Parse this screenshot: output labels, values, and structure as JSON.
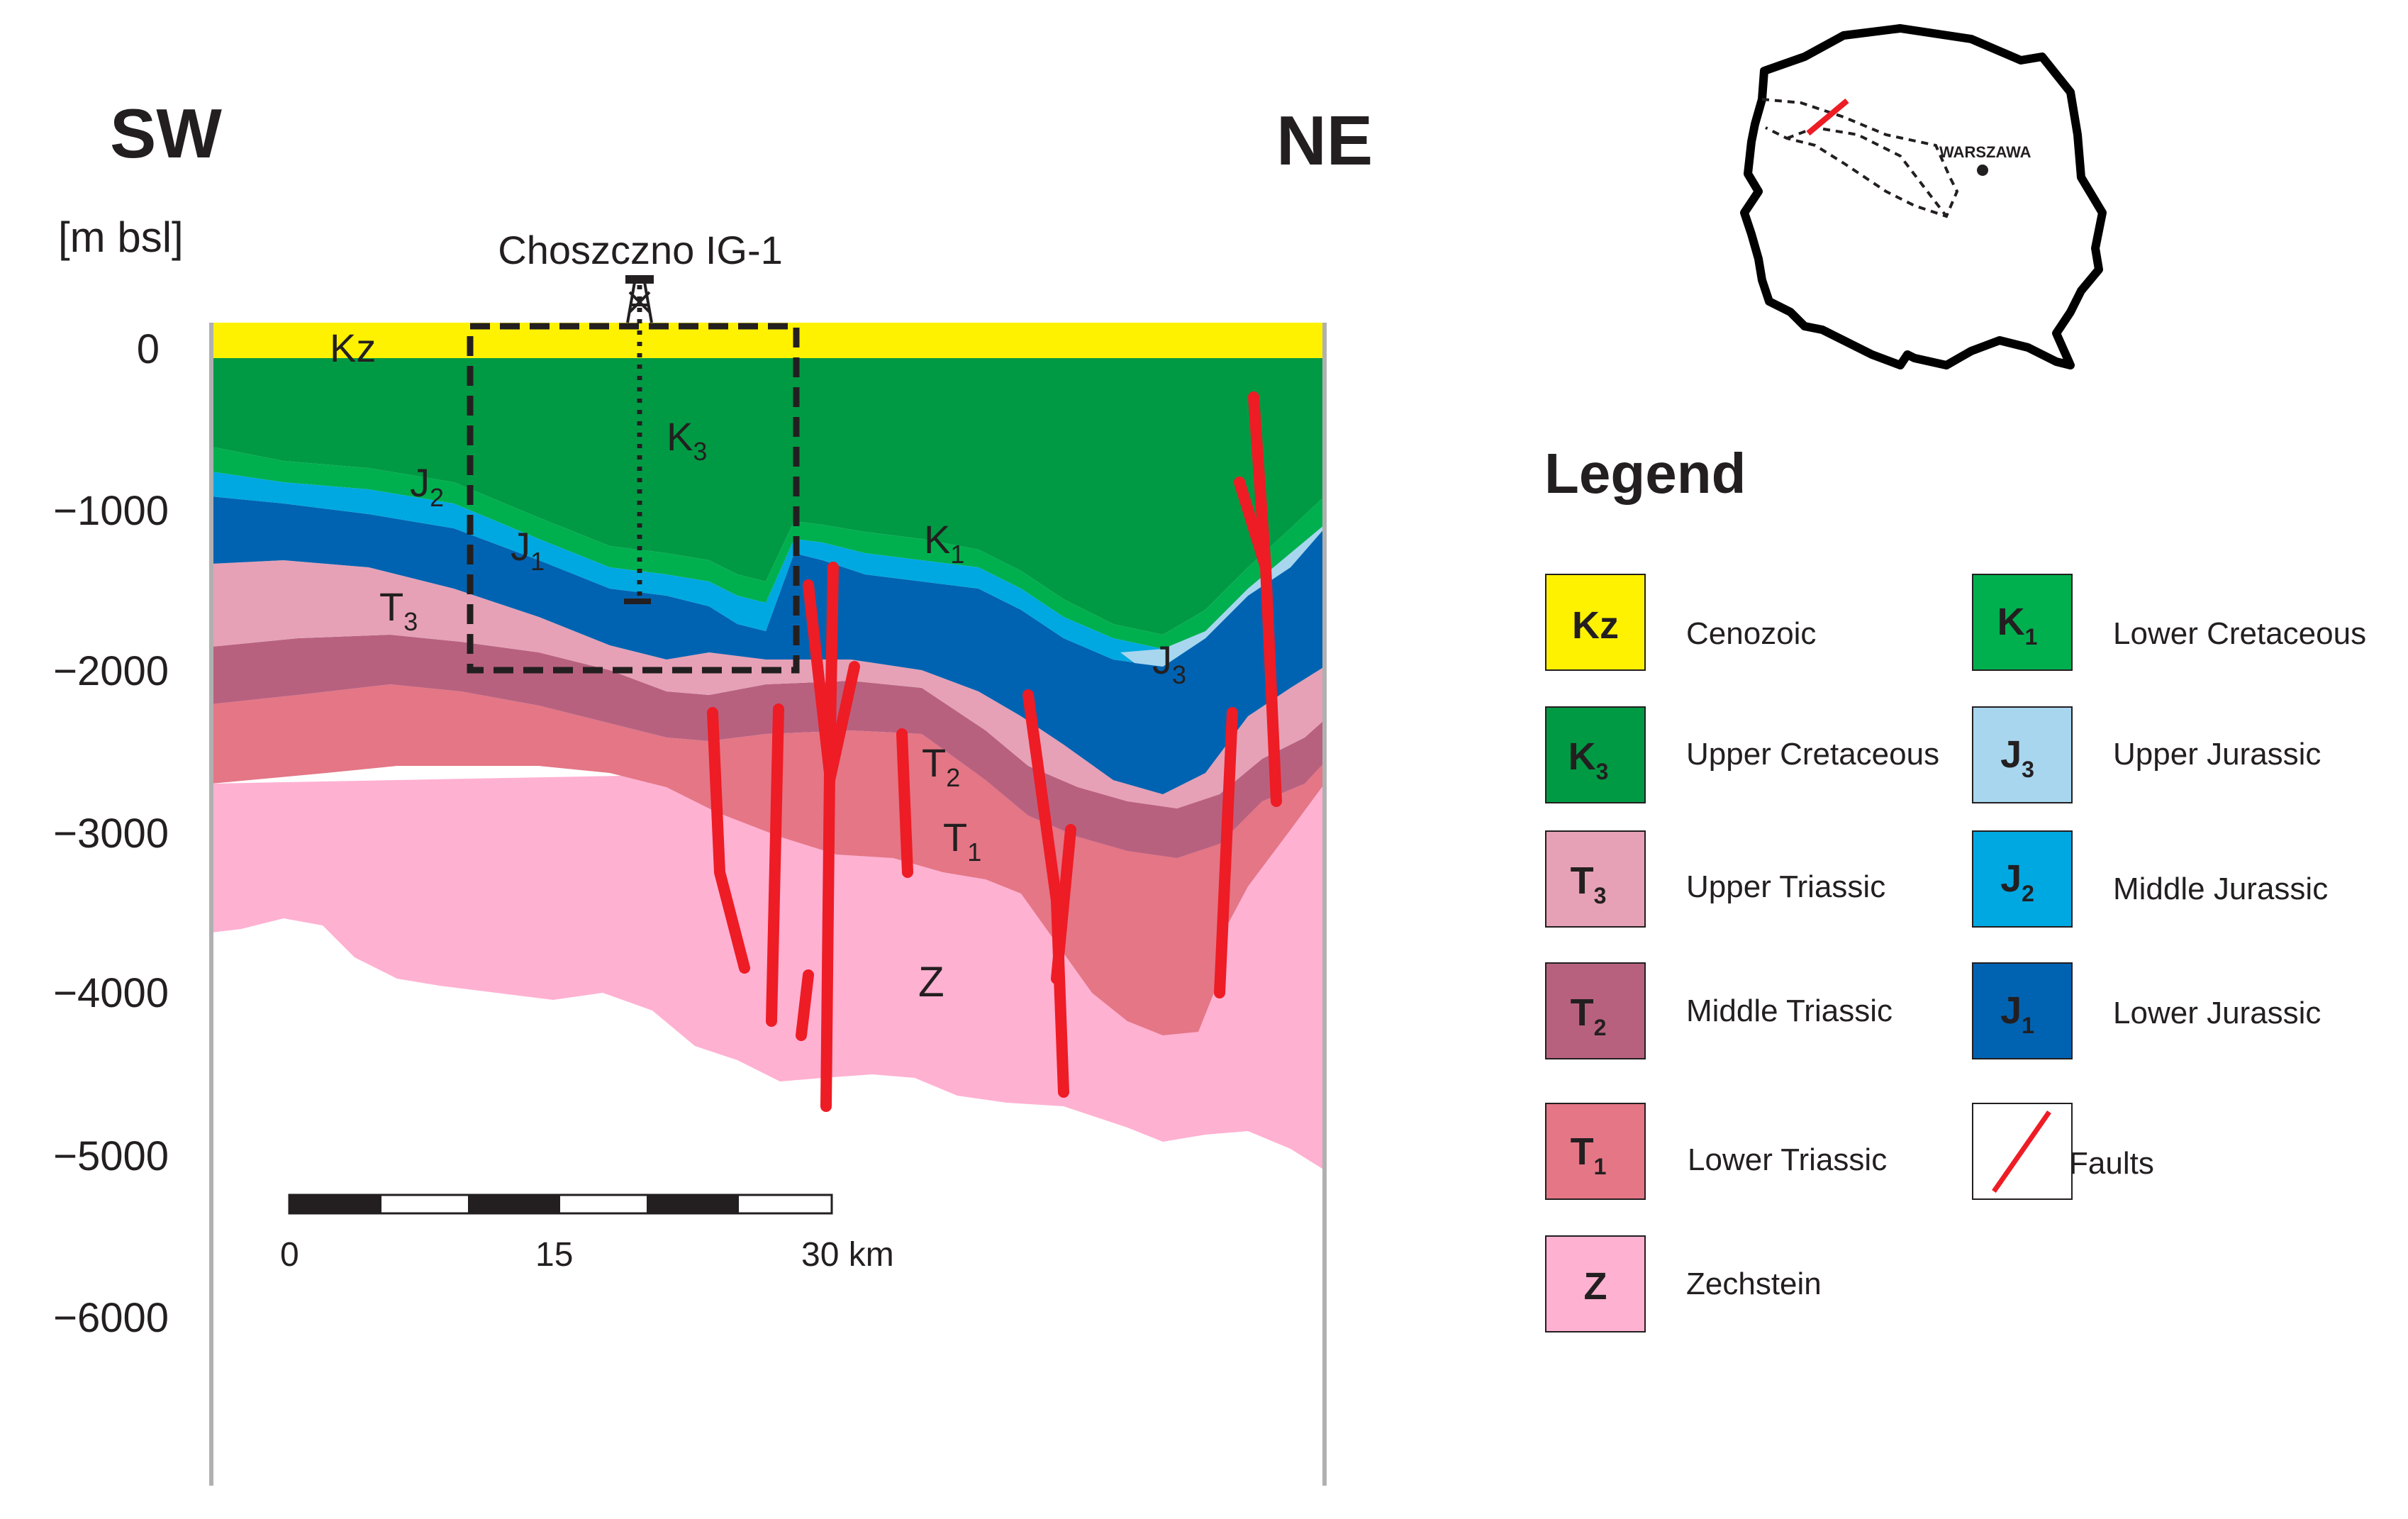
{
  "header": {
    "left_direction": "SW",
    "right_direction": "NE"
  },
  "depth_axis": {
    "unit_label": "[m bsl]",
    "ticks": [
      {
        "value": 0,
        "label": "0"
      },
      {
        "value": -1000,
        "label": "−1000"
      },
      {
        "value": -2000,
        "label": "−2000"
      },
      {
        "value": -3000,
        "label": "−3000"
      },
      {
        "value": -4000,
        "label": "−4000"
      },
      {
        "value": -5000,
        "label": "−5000"
      },
      {
        "value": -6000,
        "label": "−6000"
      }
    ]
  },
  "well": {
    "name": "Choszczno IG-1"
  },
  "section_labels": {
    "kz": "Kz",
    "k3": {
      "base": "K",
      "sub": "3"
    },
    "k1": {
      "base": "K",
      "sub": "1"
    },
    "j3": {
      "base": "J",
      "sub": "3"
    },
    "j2": {
      "base": "J",
      "sub": "2"
    },
    "j1": {
      "base": "J",
      "sub": "1"
    },
    "t3": {
      "base": "T",
      "sub": "3"
    },
    "t2": {
      "base": "T",
      "sub": "2"
    },
    "t1": {
      "base": "T",
      "sub": "1"
    },
    "z": "Z"
  },
  "scale_bar": {
    "labels": [
      "0",
      "15",
      "30 km"
    ]
  },
  "locator_map": {
    "city": "WARSZAWA"
  },
  "legend": {
    "title": "Legend",
    "items": [
      {
        "key": "kz",
        "symbol": "Kz",
        "sub": "",
        "name": "Cenozoic",
        "color": "#fff200"
      },
      {
        "key": "k3",
        "symbol": "K",
        "sub": "3",
        "name": "Upper Cretaceous",
        "color": "#009a44"
      },
      {
        "key": "t3",
        "symbol": "T",
        "sub": "3",
        "name": "Upper Triassic",
        "color": "#e6a1b6"
      },
      {
        "key": "t2",
        "symbol": "T",
        "sub": "2",
        "name": "Middle Triassic",
        "color": "#b8617f"
      },
      {
        "key": "t1",
        "symbol": "T",
        "sub": "1",
        "name": "Lower Triassic",
        "color": "#e47686"
      },
      {
        "key": "z",
        "symbol": "Z",
        "sub": "",
        "name": "Zechstein",
        "color": "#ffb1d2"
      },
      {
        "key": "k1",
        "symbol": "K",
        "sub": "1",
        "name": "Lower Cretaceous",
        "color": "#00b04f"
      },
      {
        "key": "j3",
        "symbol": "J",
        "sub": "3",
        "name": "Upper Jurassic",
        "color": "#a8d6ef"
      },
      {
        "key": "j2",
        "symbol": "J",
        "sub": "2",
        "name": "Middle Jurassic",
        "color": "#00a8e1"
      },
      {
        "key": "j1",
        "symbol": "J",
        "sub": "1",
        "name": "Lower Jurassic",
        "color": "#0063b1"
      },
      {
        "key": "faults",
        "symbol": "",
        "sub": "",
        "name": "Faults",
        "color": "#ee1c25"
      }
    ]
  }
}
